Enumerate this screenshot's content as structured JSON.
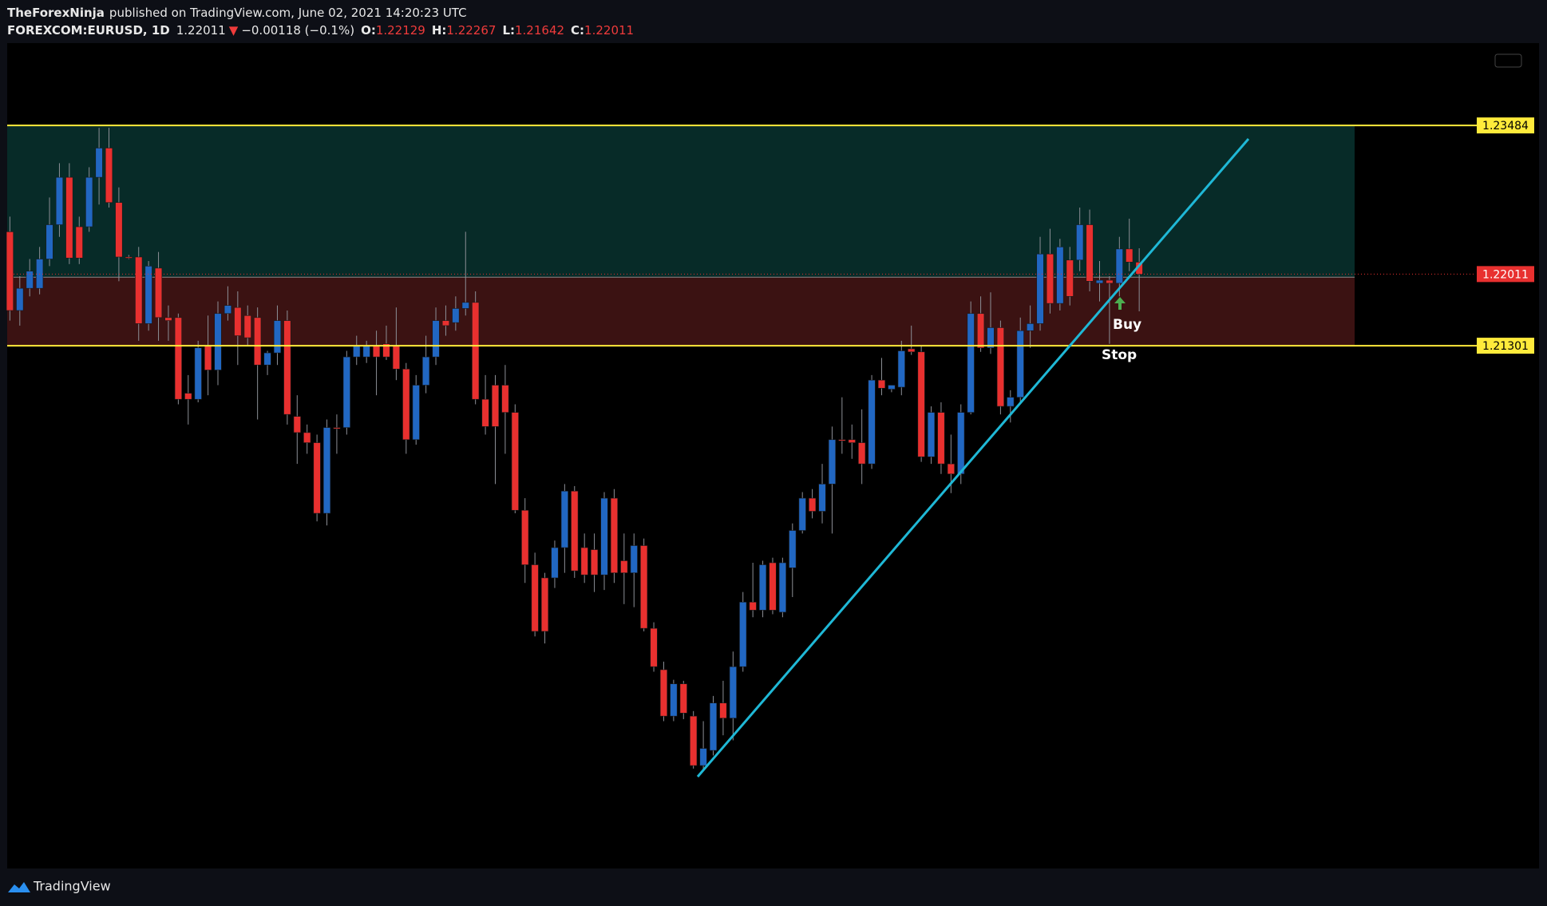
{
  "header": {
    "publisher": "TheForexNinja",
    "published": "published on TradingView.com, June 02, 2021 14:20:23 UTC",
    "symbol": "FOREXCOM:EURUSD, 1D",
    "change_arrow": "▼",
    "change": "−0.00118 (−0.1%)",
    "ohlc_labels": [
      "O:",
      "H:",
      "L:",
      "C:"
    ]
  },
  "chart_data": {
    "type": "candlestick",
    "open": [
      1.2243,
      1.2165,
      1.2187,
      1.2187,
      1.2216,
      1.225,
      1.2297,
      1.2248,
      1.2248,
      1.2297,
      1.2326,
      1.2272,
      1.2218,
      1.2218,
      1.2152,
      1.2207,
      1.2158,
      1.2158,
      1.2083,
      1.2077,
      1.213,
      1.2106,
      1.2162,
      1.2168,
      1.216,
      1.2158,
      1.2111,
      1.2123,
      1.2155,
      1.206,
      1.2044,
      1.2034,
      1.1964,
      1.2049,
      1.2049,
      1.2119,
      1.2119,
      1.213,
      1.2132,
      1.213,
      1.2107,
      1.2037,
      1.2091,
      1.2119,
      1.2155,
      1.2153,
      1.2167,
      1.2173,
      1.2077,
      1.2091,
      1.2091,
      1.2064,
      1.1967,
      1.1913,
      1.19,
      1.19,
      1.193,
      1.1986,
      1.193,
      1.1928,
      1.1903,
      1.1979,
      1.1917,
      1.1905,
      1.1932,
      1.185,
      1.1809,
      1.1763,
      1.1795,
      1.1763,
      1.1714,
      1.1729,
      1.1776,
      1.1761,
      1.1812,
      1.1876,
      1.1868,
      1.1915,
      1.1866,
      1.191,
      1.1947,
      1.1979,
      1.1966,
      1.1993,
      1.2037,
      1.2037,
      1.2034,
      1.2013,
      1.2096,
      1.2087,
      1.2089,
      1.2127,
      1.2124,
      1.202,
      1.2064,
      1.2013,
      1.2003,
      1.2064,
      1.2162,
      1.2128,
      1.2148,
      1.207,
      1.2079,
      1.2145,
      1.2152,
      1.2221,
      1.2172,
      1.2215,
      1.2215,
      1.225,
      1.2192,
      1.2195,
      1.2192,
      1.2226,
      1.22129
    ],
    "high": [
      1.2258,
      1.2199,
      1.2216,
      1.2228,
      1.2277,
      1.2311,
      1.2311,
      1.2258,
      1.2307,
      1.2346,
      1.2346,
      1.2287,
      1.222,
      1.2228,
      1.2214,
      1.2223,
      1.217,
      1.2162,
      1.2101,
      1.2135,
      1.216,
      1.2174,
      1.2189,
      1.2184,
      1.217,
      1.2168,
      1.2125,
      1.217,
      1.2165,
      1.2081,
      1.2052,
      1.2042,
      1.2057,
      1.2062,
      1.2125,
      1.214,
      1.2135,
      1.2145,
      1.215,
      1.2168,
      1.2113,
      1.2101,
      1.214,
      1.2168,
      1.217,
      1.2179,
      1.2243,
      1.2184,
      1.2101,
      1.2101,
      1.2111,
      1.2072,
      1.1979,
      1.1925,
      1.1905,
      1.1937,
      1.1993,
      1.1991,
      1.1944,
      1.1944,
      1.1985,
      1.1988,
      1.1944,
      1.1944,
      1.1939,
      1.1856,
      1.1817,
      1.1799,
      1.1798,
      1.1768,
      1.1758,
      1.1783,
      1.1798,
      1.1827,
      1.1886,
      1.1915,
      1.1917,
      1.192,
      1.192,
      1.1954,
      1.1985,
      1.1988,
      1.2013,
      1.205,
      1.2079,
      1.2052,
      1.2067,
      1.2101,
      1.2118,
      1.2091,
      1.2135,
      1.215,
      1.213,
      1.207,
      1.2074,
      1.2042,
      1.2072,
      1.2174,
      1.2179,
      1.2183,
      1.2155,
      1.2086,
      1.2158,
      1.217,
      1.2238,
      1.2246,
      1.2236,
      1.2228,
      1.2267,
      1.2265,
      1.2214,
      1.2199,
      1.2238,
      1.2256,
      1.22267
    ],
    "low": [
      1.2155,
      1.215,
      1.2179,
      1.2181,
      1.2209,
      1.2238,
      1.2211,
      1.2211,
      1.2243,
      1.227,
      1.2267,
      1.2194,
      1.2216,
      1.2135,
      1.2145,
      1.2135,
      1.2135,
      1.2072,
      1.2052,
      1.2074,
      1.2081,
      1.2091,
      1.2155,
      1.2111,
      1.213,
      1.2057,
      1.2101,
      1.2111,
      1.2052,
      1.2013,
      1.2023,
      1.1956,
      1.1952,
      1.2023,
      1.2042,
      1.2111,
      1.2113,
      1.2081,
      1.2116,
      1.2096,
      1.2023,
      1.2032,
      1.2083,
      1.2111,
      1.214,
      1.2145,
      1.216,
      1.2072,
      1.2042,
      1.1993,
      1.2023,
      1.1964,
      1.1895,
      1.1842,
      1.1835,
      1.189,
      1.1905,
      1.19,
      1.1895,
      1.1886,
      1.1888,
      1.1895,
      1.1874,
      1.1871,
      1.1847,
      1.1807,
      1.1758,
      1.1758,
      1.176,
      1.1711,
      1.1709,
      1.1724,
      1.1744,
      1.1739,
      1.1807,
      1.1861,
      1.1861,
      1.1864,
      1.1861,
      1.1881,
      1.1944,
      1.1959,
      1.1954,
      1.1944,
      1.2023,
      1.2018,
      1.1993,
      1.2008,
      1.2081,
      1.2084,
      1.2081,
      1.2121,
      1.2015,
      1.2013,
      1.2003,
      1.1984,
      1.1993,
      1.2062,
      1.2124,
      1.2122,
      1.2062,
      1.2054,
      1.2074,
      1.2128,
      1.2145,
      1.2162,
      1.2165,
      1.217,
      1.2204,
      1.2184,
      1.2174,
      1.2132,
      1.2179,
      1.2204,
      1.21642
    ],
    "close": [
      1.2165,
      1.2187,
      1.2204,
      1.2216,
      1.225,
      1.2297,
      1.2217,
      1.2217,
      1.2297,
      1.2326,
      1.2272,
      1.2218,
      1.2217,
      1.2152,
      1.2209,
      1.2158,
      1.2155,
      1.2077,
      1.2077,
      1.2128,
      1.2106,
      1.2162,
      1.217,
      1.214,
      1.2138,
      1.2111,
      1.2123,
      1.2155,
      1.2062,
      1.2044,
      1.2034,
      1.1964,
      1.2049,
      1.2048,
      1.2119,
      1.213,
      1.213,
      1.2119,
      1.2119,
      1.2107,
      1.2037,
      1.2091,
      1.2119,
      1.2155,
      1.215,
      1.2167,
      1.2173,
      1.2077,
      1.205,
      1.205,
      1.2064,
      1.1967,
      1.1913,
      1.1847,
      1.1847,
      1.193,
      1.1986,
      1.1907,
      1.1903,
      1.1903,
      1.1979,
      1.1905,
      1.1905,
      1.1932,
      1.185,
      1.1812,
      1.1763,
      1.1795,
      1.1766,
      1.1714,
      1.1731,
      1.1776,
      1.1761,
      1.1812,
      1.1876,
      1.1868,
      1.1913,
      1.1868,
      1.1915,
      1.1947,
      1.1979,
      1.1966,
      1.1993,
      1.2037,
      1.2036,
      1.2034,
      1.2013,
      1.2096,
      1.2088,
      1.2091,
      1.2125,
      1.2124,
      1.202,
      1.2064,
      1.2013,
      1.2003,
      1.2064,
      1.2162,
      1.2128,
      1.2148,
      1.207,
      1.2079,
      1.2145,
      1.2152,
      1.2221,
      1.2172,
      1.2228,
      1.2179,
      1.225,
      1.2194,
      1.2195,
      1.2192,
      1.2226,
      1.2213,
      1.22011
    ],
    "up_color": "#2167c2",
    "down_color": "#e8302f",
    "wick_color": "#8c8f96",
    "ylim": [
      1.1612,
      1.243
    ],
    "levels": [
      {
        "value": 1.23484,
        "color": "#ffeb3b"
      },
      {
        "value": 1.21301,
        "color": "#ffeb3b"
      }
    ],
    "last_price_color": "#e8302f",
    "position": {
      "target": 1.23484,
      "entry": 1.2198,
      "stop": 1.21301,
      "target_color": "#0a3a36",
      "stop_color": "#4a1616"
    },
    "annotations": [
      "Buy",
      "Stop"
    ]
  },
  "footer": {
    "brand": "TradingView"
  }
}
